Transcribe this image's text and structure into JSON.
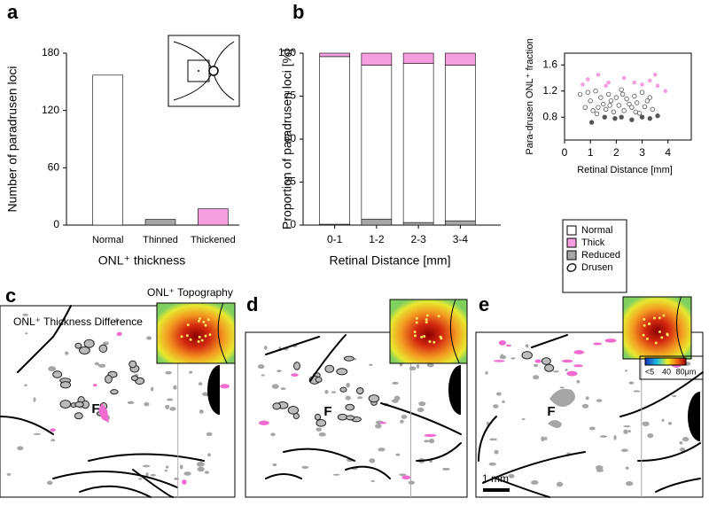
{
  "chart_data": [
    {
      "type": "bar",
      "panel": "a",
      "ylabel": "Number of paradrusen loci",
      "xlabel": "ONL⁺ thickness",
      "categories": [
        "Normal",
        "Thinned",
        "Thickened"
      ],
      "values": [
        157,
        6,
        17
      ],
      "colors": [
        "#ffffff",
        "#a6a6a6",
        "#f59fe0"
      ],
      "ylim": [
        0,
        180
      ],
      "yticks": [
        0,
        60,
        120,
        180
      ]
    },
    {
      "type": "stacked-bar",
      "panel": "b",
      "ylabel": "Proportion of paradrusen loci [%]",
      "xlabel": "Retinal Distance [mm]",
      "categories": [
        "0-1",
        "1-2",
        "2-3",
        "3-4"
      ],
      "series": [
        {
          "name": "Normal",
          "color": "#ffffff",
          "values": [
            97.5,
            89.5,
            92.5,
            90.5
          ]
        },
        {
          "name": "Thick",
          "color": "#f59fe0",
          "values": [
            2,
            7,
            6,
            7
          ]
        },
        {
          "name": "Reduced",
          "color": "#a6a6a6",
          "values": [
            0.5,
            3.5,
            1.5,
            2.5
          ]
        }
      ],
      "ylim": [
        0,
        100
      ],
      "yticks": [
        0,
        25,
        50,
        75,
        100
      ]
    },
    {
      "type": "scatter",
      "ylabel": "Para-drusen ONL⁺ fraction",
      "xlabel": "Retinal Distance [mm]",
      "series": [
        {
          "name": "Normal",
          "color": "#ffffff",
          "x": [
            0.6,
            0.8,
            0.9,
            1.0,
            1.1,
            1.2,
            1.3,
            1.4,
            1.5,
            1.6,
            1.7,
            1.8,
            1.9,
            2.0,
            2.1,
            2.2,
            2.3,
            2.4,
            2.5,
            2.6,
            2.7,
            2.8,
            2.9,
            3.0,
            3.1,
            3.2,
            3.3,
            3.4,
            1.25,
            1.75,
            2.25,
            2.75
          ],
          "values": [
            1.15,
            0.95,
            1.18,
            1.05,
            0.9,
            1.2,
            0.95,
            1.1,
            1.0,
            0.92,
            1.15,
            1.05,
            0.88,
            1.1,
            0.98,
            1.22,
            0.9,
            1.08,
            1.0,
            0.95,
            1.12,
            1.02,
            0.86,
            1.18,
            0.96,
            1.05,
            1.1,
            0.92,
            0.85,
            0.98,
            1.15,
            0.88
          ]
        },
        {
          "name": "Thick",
          "color": "#f59fe0",
          "x": [
            0.7,
            1.3,
            1.6,
            1.7,
            2.3,
            2.7,
            3.0,
            3.3,
            3.5,
            3.6,
            3.9,
            0.9
          ],
          "values": [
            1.3,
            1.45,
            1.28,
            1.33,
            1.4,
            1.33,
            1.3,
            1.36,
            1.45,
            1.28,
            1.2,
            1.38
          ]
        },
        {
          "name": "Reduced",
          "color": "#555555",
          "x": [
            1.05,
            1.55,
            1.95,
            2.2,
            2.6,
            3.0,
            3.3,
            3.6
          ],
          "values": [
            0.72,
            0.8,
            0.78,
            0.8,
            0.76,
            0.8,
            0.78,
            0.82
          ]
        }
      ],
      "xlim": [
        0,
        4.9
      ],
      "xticks": [
        0,
        1,
        2,
        3,
        4
      ],
      "ylim": [
        0.45,
        1.78
      ],
      "yticks": [
        0.8,
        1.2,
        1.6
      ]
    }
  ],
  "legend_extra": {
    "name": "Drusen",
    "color": "#a6a6a6"
  },
  "panels": [
    {
      "label": "c",
      "title": "ONL⁺ Thickness Difference",
      "inset_title": "ONL⁺ Topography",
      "fovea": "F"
    },
    {
      "label": "d",
      "fovea": "F"
    },
    {
      "label": "e",
      "fovea": "F",
      "colorbar_ticks": [
        "<5",
        "40",
        "80μm"
      ],
      "scale_bar": "1 mm"
    }
  ]
}
